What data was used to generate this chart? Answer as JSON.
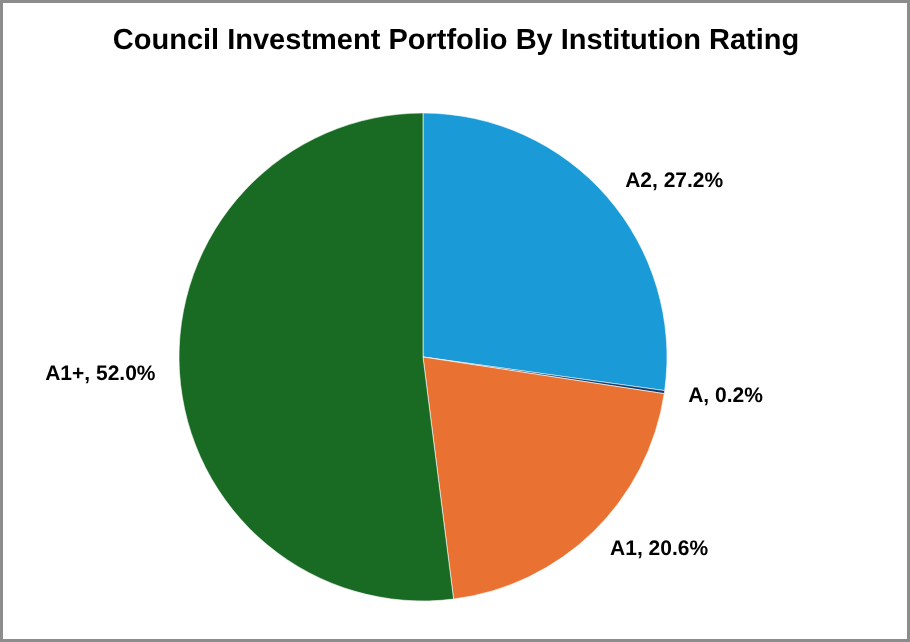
{
  "chart_data": {
    "type": "pie",
    "title": "Council Investment Portfolio By Institution Rating",
    "categories": [
      "A2",
      "A",
      "A1",
      "A1+"
    ],
    "values": [
      27.2,
      0.2,
      20.6,
      52.0
    ],
    "colors": [
      "#1a9ad6",
      "#0f3d6e",
      "#e97132",
      "#196b24"
    ],
    "value_labels": [
      "27.2%",
      "0.2%",
      "20.6%",
      "52.0%"
    ]
  }
}
